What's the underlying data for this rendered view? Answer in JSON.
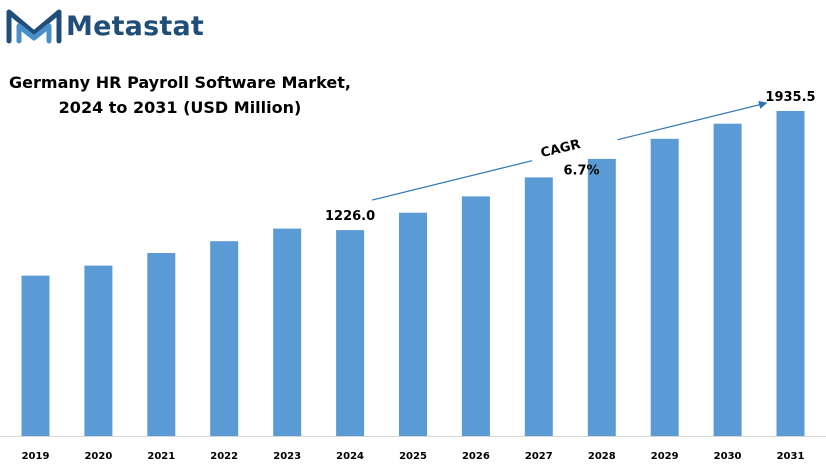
{
  "brand": {
    "name": "Metastat",
    "logo_icon": "metastat-m-logo-icon",
    "colors": {
      "logo_dark": "#1f4e79",
      "logo_light": "#4a90c8"
    }
  },
  "chart_data": {
    "type": "bar",
    "title_line1": "Germany HR Payroll Software Market,",
    "title_line2": "2024 to 2031 (USD Million)",
    "categories": [
      "2019",
      "2020",
      "2021",
      "2022",
      "2023",
      "2024",
      "2025",
      "2026",
      "2027",
      "2028",
      "2029",
      "2030",
      "2031"
    ],
    "values": [
      955,
      1015,
      1090,
      1160,
      1235,
      1226.0,
      1330,
      1427,
      1540,
      1650,
      1770,
      1860,
      1935.5
    ],
    "data_labels": [
      {
        "category": "2024",
        "text": "1226.0"
      },
      {
        "category": "2031",
        "text": "1935.5"
      }
    ],
    "annotation": {
      "label": "CAGR",
      "value": "6.7%",
      "from": "2024",
      "to": "2031"
    },
    "bar_color": "#5b9bd5",
    "arrow_color": "#2e75b6",
    "ylim": [
      0,
      1935.5
    ],
    "grid": false,
    "legend": "none"
  }
}
